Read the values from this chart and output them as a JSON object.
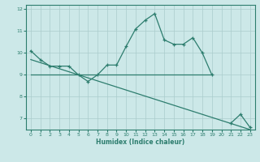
{
  "xlabel": "Humidex (Indice chaleur)",
  "x_values": [
    0,
    1,
    2,
    3,
    4,
    5,
    6,
    7,
    8,
    9,
    10,
    11,
    12,
    13,
    14,
    15,
    16,
    17,
    18,
    19,
    20,
    21,
    22,
    23
  ],
  "main_line_y": [
    10.1,
    9.7,
    9.4,
    9.4,
    9.4,
    9.0,
    8.7,
    9.0,
    9.45,
    9.45,
    10.3,
    11.1,
    11.5,
    11.8,
    10.6,
    10.4,
    10.4,
    10.7,
    10.0,
    9.0,
    null,
    6.8,
    7.2,
    6.6
  ],
  "flat_line_x": [
    0,
    19
  ],
  "flat_line_y": [
    9.0,
    9.0
  ],
  "diag_line_x": [
    0,
    23
  ],
  "diag_line_y": [
    9.7,
    6.5
  ],
  "line_color": "#2d7d6e",
  "bg_color": "#cce8e8",
  "grid_color": "#aacccc",
  "ylim": [
    6.5,
    12.2
  ],
  "xlim": [
    -0.5,
    23.5
  ],
  "yticks": [
    7,
    8,
    9,
    10,
    11,
    12
  ],
  "xticks": [
    0,
    1,
    2,
    3,
    4,
    5,
    6,
    7,
    8,
    9,
    10,
    11,
    12,
    13,
    14,
    15,
    16,
    17,
    18,
    19,
    20,
    21,
    22,
    23
  ]
}
